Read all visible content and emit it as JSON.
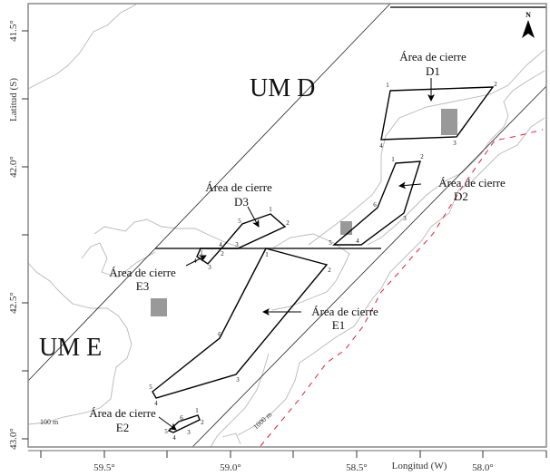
{
  "axes": {
    "ylabel": "Latitud (S)",
    "xlabel": "Longitud (W)",
    "yticks": [
      "41.5°",
      "42.0°",
      "42.5°",
      "43.0°"
    ],
    "xticks": [
      "59.5°",
      "59.0°",
      "58.5°",
      "58.0°"
    ]
  },
  "units": {
    "d": "UM D",
    "e": "UM E"
  },
  "north": "N",
  "areas": {
    "d1": {
      "title": "Área de cierre",
      "code": "D1",
      "vertices": [
        "1",
        "2",
        "3",
        "4"
      ]
    },
    "d2": {
      "title": "Área de cierre",
      "code": "D2",
      "vertices": [
        "1",
        "2",
        "3",
        "4",
        "5",
        "6"
      ]
    },
    "d3": {
      "title": "Área de cierre",
      "code": "D3",
      "vertices": [
        "1",
        "2",
        "3",
        "4",
        "5"
      ]
    },
    "e1": {
      "title": "Área de cierre",
      "code": "E1",
      "vertices": [
        "1",
        "2",
        "3",
        "4",
        "5",
        "6"
      ]
    },
    "e2": {
      "title": "Área de cierre",
      "code": "E2",
      "vertices": [
        "1",
        "2",
        "3",
        "4",
        "5",
        "6"
      ]
    },
    "e3": {
      "title": "Área de cierre",
      "code": "E3",
      "vertices": [
        "1",
        "2",
        "3",
        "4"
      ]
    }
  },
  "contours": {
    "c100": "100 m",
    "c1000": "1000 m"
  },
  "colors": {
    "closure_boundary": "#000000",
    "contour": "#b8b8b8",
    "dashed_line": "#e0203a",
    "marker": "#999999"
  }
}
